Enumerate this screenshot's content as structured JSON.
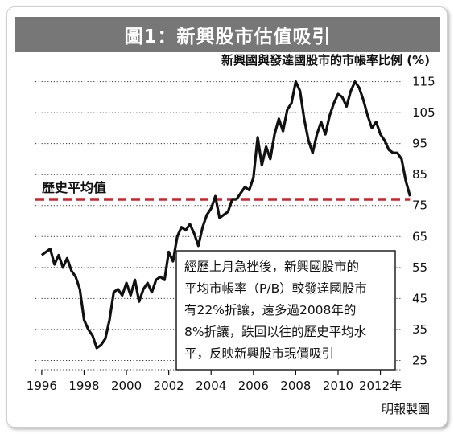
{
  "chart_data": {
    "type": "line",
    "title": "圖1：新興股市估值吸引",
    "ylabel": "新興國與發達國股市的市帳率比例 (%)",
    "xlabel": "",
    "x_tick_labels": [
      "1996",
      "1998",
      "2000",
      "2002",
      "2004",
      "2006",
      "2008",
      "2010",
      "2012年"
    ],
    "x_ticks": [
      1996,
      1998,
      2000,
      2002,
      2004,
      2006,
      2008,
      2010,
      2012
    ],
    "y_ticks": [
      25,
      35,
      45,
      55,
      65,
      75,
      85,
      95,
      105,
      115
    ],
    "xlim": [
      1995.7,
      2013.5
    ],
    "ylim": [
      22,
      118
    ],
    "grid": "horizontal dotted",
    "series": [
      {
        "name": "",
        "color": "#111111",
        "x": [
          1996.0,
          1996.2,
          1996.4,
          1996.6,
          1996.8,
          1997.0,
          1997.2,
          1997.4,
          1997.6,
          1997.8,
          1998.0,
          1998.2,
          1998.4,
          1998.6,
          1998.8,
          1999.0,
          1999.2,
          1999.4,
          1999.6,
          1999.8,
          2000.0,
          2000.2,
          2000.4,
          2000.6,
          2000.8,
          2001.0,
          2001.2,
          2001.4,
          2001.6,
          2001.8,
          2002.0,
          2002.2,
          2002.4,
          2002.6,
          2002.8,
          2003.0,
          2003.2,
          2003.4,
          2003.6,
          2003.8,
          2004.0,
          2004.2,
          2004.4,
          2004.6,
          2004.8,
          2005.0,
          2005.2,
          2005.4,
          2005.6,
          2005.8,
          2006.0,
          2006.2,
          2006.4,
          2006.6,
          2006.8,
          2007.0,
          2007.2,
          2007.4,
          2007.6,
          2007.8,
          2008.0,
          2008.2,
          2008.4,
          2008.6,
          2008.8,
          2009.0,
          2009.2,
          2009.4,
          2009.6,
          2009.8,
          2010.0,
          2010.2,
          2010.4,
          2010.6,
          2010.8,
          2011.0,
          2011.2,
          2011.4,
          2011.6,
          2011.8,
          2012.0,
          2012.2,
          2012.4,
          2012.6,
          2012.8,
          2013.0,
          2013.2,
          2013.4
        ],
        "values": [
          59,
          60,
          61,
          56,
          59,
          55,
          58,
          54,
          52,
          48,
          38,
          35,
          33,
          29,
          30,
          32,
          38,
          47,
          48,
          46,
          50,
          46,
          51,
          44,
          48,
          50,
          47,
          51,
          52,
          51,
          60,
          57,
          65,
          68,
          67,
          69,
          66,
          62,
          68,
          72,
          74,
          78,
          71,
          72,
          73,
          77,
          77,
          79,
          81,
          80,
          84,
          97,
          88,
          94,
          90,
          98,
          103,
          99,
          106,
          108,
          115,
          112,
          103,
          96,
          92,
          98,
          102,
          98,
          104,
          108,
          111,
          110,
          107,
          112,
          115,
          113,
          109,
          104,
          100,
          102,
          98,
          96,
          93,
          92,
          92,
          90,
          83,
          78
        ]
      }
    ],
    "reference_line": {
      "label": "歷史平均值",
      "value": 77,
      "color": "#d4202a"
    }
  },
  "annotation_lines": [
    "經歷上月急挫後，新興國股市的",
    "平均市帳率（P/B）較發達國股市",
    "有22%折讓，遠多過2008年的",
    "8%折讓，跌回以往的歷史平均水",
    "平，反映新興股市現價吸引"
  ],
  "source": "明報製圖"
}
